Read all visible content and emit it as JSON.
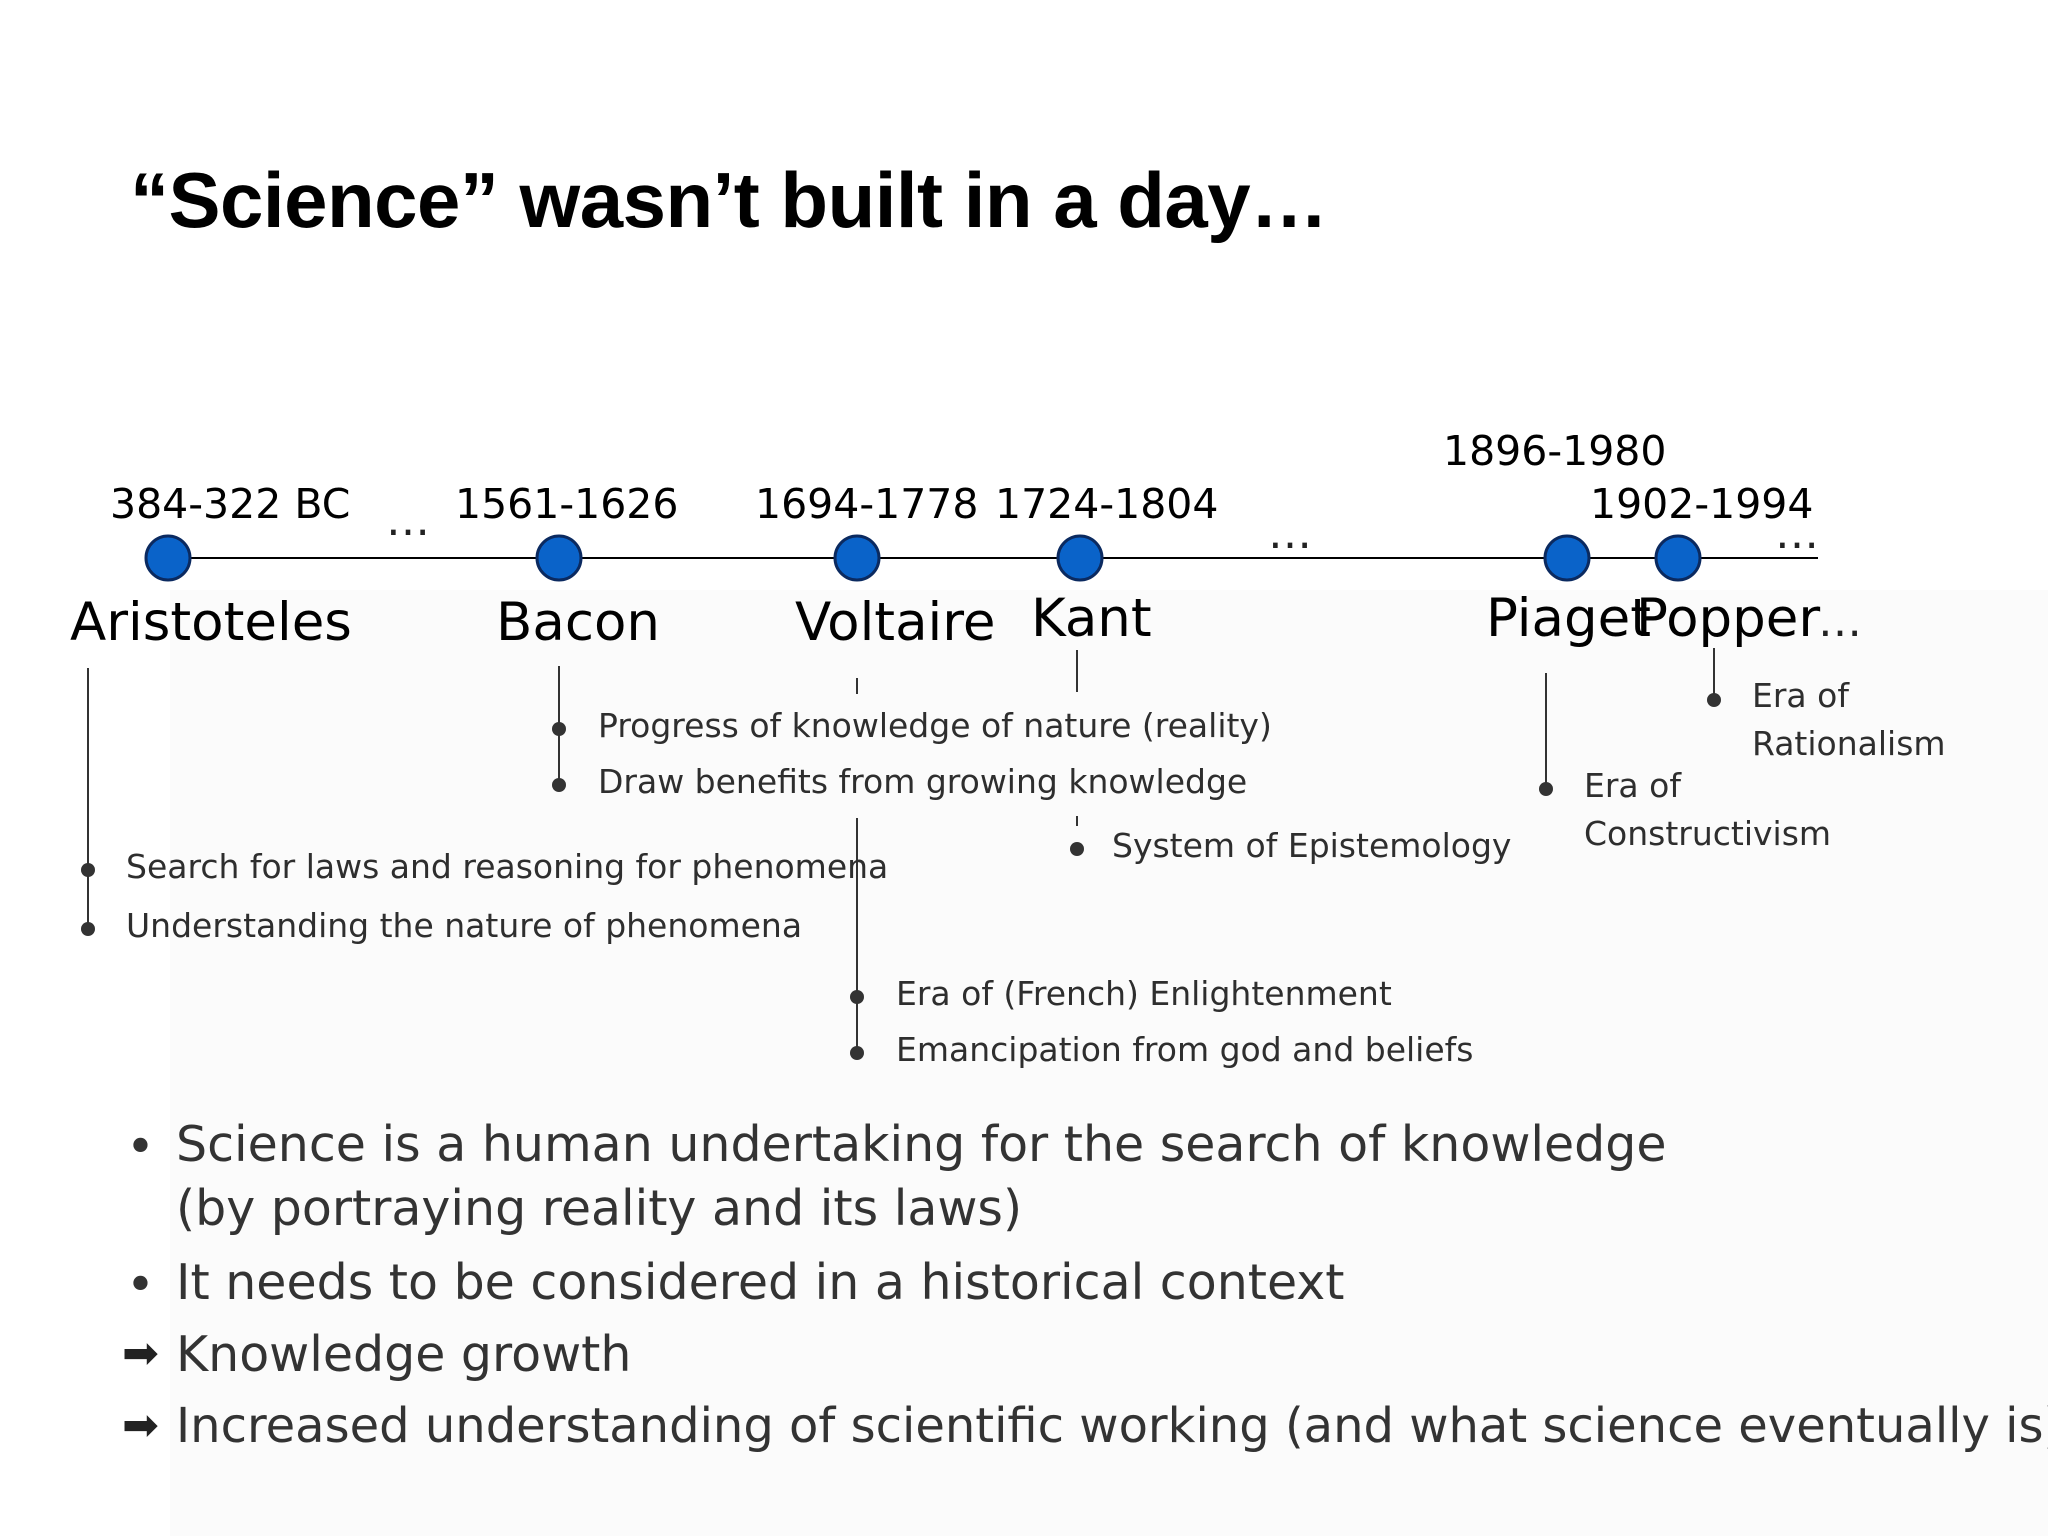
{
  "slide": {
    "title": "“Science” wasn’t built in a day…",
    "colors": {
      "node": "#0a63c9",
      "node_stroke": "#0b2a60",
      "line": "#000000",
      "text": "#333333"
    },
    "timeline": {
      "years": {
        "aristoteles": "384-322 BC",
        "bacon": "1561-1626",
        "voltaire": "1694-1778",
        "kant": "1724-1804",
        "piaget": "1896-1980",
        "popper": "1902-1994"
      },
      "names": {
        "aristoteles": "Aristoteles",
        "bacon": "Bacon",
        "voltaire": "Voltaire",
        "kant": "Kant",
        "piaget": "Piaget",
        "popper": "Popper"
      },
      "ellipsis": "…"
    },
    "notes": {
      "aristoteles": [
        "Search for laws and reasoning for phenomena",
        "Understanding the nature of phenomena"
      ],
      "bacon": [
        "Progress of knowledge of nature (reality)",
        "Draw benefits from growing knowledge"
      ],
      "voltaire": [
        "Era of (French) Enlightenment",
        "Emancipation from god and beliefs"
      ],
      "kant": [
        "System of Epistemology"
      ],
      "piaget": [
        "Era of",
        "Constructivism"
      ],
      "popper": [
        "Era of",
        "Rationalism"
      ]
    },
    "bullets": [
      {
        "marker": "•",
        "lines": [
          "Science is a human undertaking for the search of knowledge",
          "(by portraying reality and its laws)"
        ]
      },
      {
        "marker": "•",
        "lines": [
          "It needs to be considered in a historical context"
        ]
      },
      {
        "marker": "arrow-icon",
        "lines": [
          "Knowledge growth"
        ]
      },
      {
        "marker": "arrow-icon",
        "lines": [
          "Increased understanding of scientific working (and what science eventually is)"
        ]
      }
    ]
  }
}
